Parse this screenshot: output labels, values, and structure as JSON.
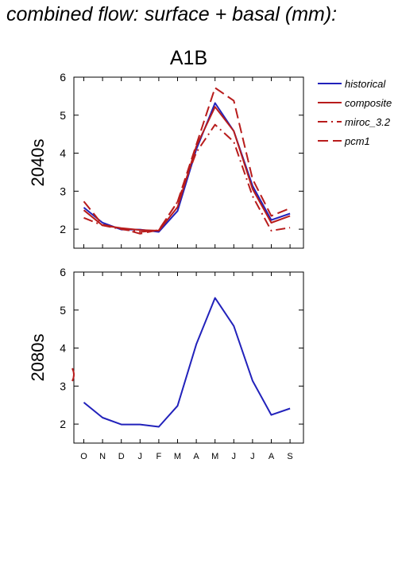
{
  "page": {
    "title": "combined flow: surface + basal (mm):"
  },
  "colors": {
    "historical": "#2222bb",
    "scenario": "#b81c1c"
  },
  "chart_data": [
    {
      "type": "line",
      "title": "A1B",
      "ylabel": "2040s",
      "categories": [
        "O",
        "N",
        "D",
        "J",
        "F",
        "M",
        "A",
        "M",
        "J",
        "J",
        "A",
        "S"
      ],
      "ylim": [
        1.5,
        6
      ],
      "yticks": [
        2,
        3,
        4,
        5,
        6
      ],
      "legend": {
        "placement": "right"
      },
      "series": [
        {
          "name": "historical",
          "style": "solid",
          "color": "#2222bb",
          "values": [
            2.57,
            2.17,
            1.99,
            1.99,
            1.93,
            2.48,
            4.1,
            5.32,
            4.58,
            3.14,
            2.24,
            2.41
          ]
        },
        {
          "name": "composite",
          "style": "solid",
          "color": "#b81c1c",
          "values": [
            2.5,
            2.1,
            2.03,
            1.98,
            1.96,
            2.58,
            4.18,
            5.22,
            4.58,
            3.06,
            2.17,
            2.35
          ]
        },
        {
          "name": "miroc_3.2",
          "style": "dashdot",
          "color": "#b81c1c",
          "values": [
            2.3,
            2.1,
            2.0,
            1.93,
            1.97,
            2.72,
            4.02,
            4.75,
            4.3,
            2.87,
            1.96,
            2.04
          ]
        },
        {
          "name": "pcm1",
          "style": "dash",
          "color": "#b81c1c",
          "values": [
            2.73,
            2.12,
            2.02,
            1.88,
            1.98,
            2.72,
            4.22,
            5.72,
            5.38,
            3.32,
            2.35,
            2.55
          ]
        }
      ]
    },
    {
      "type": "line",
      "ylabel": "2080s",
      "categories": [
        "O",
        "N",
        "D",
        "J",
        "F",
        "M",
        "A",
        "M",
        "J",
        "J",
        "A",
        "S"
      ],
      "ylim": [
        1.5,
        6
      ],
      "yticks": [
        2,
        3,
        4,
        5,
        6
      ],
      "series": [
        {
          "name": "historical",
          "style": "solid",
          "color": "#2222bb",
          "values": [
            2.57,
            2.17,
            1.99,
            1.99,
            1.93,
            2.48,
            4.1,
            5.32,
            4.58,
            3.14,
            2.24,
            2.41
          ]
        }
      ],
      "annotations": [
        {
          "style": "stub",
          "color": "#b81c1c",
          "y": 3.3
        }
      ]
    }
  ]
}
